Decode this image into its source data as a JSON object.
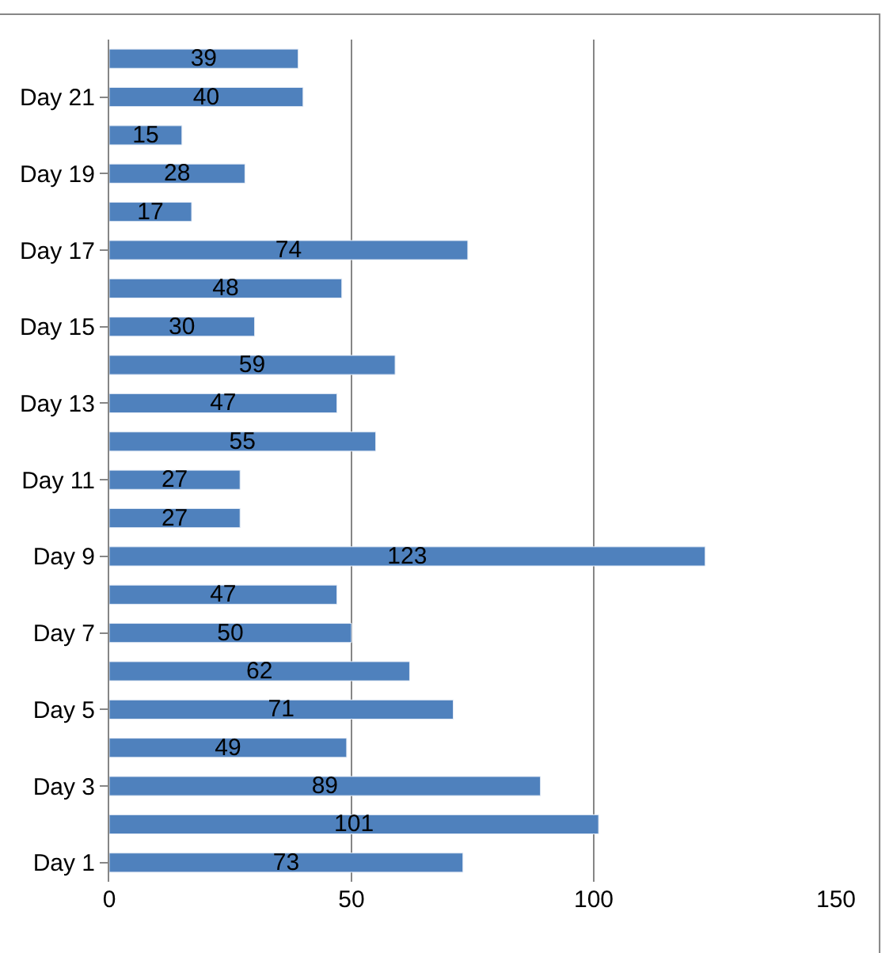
{
  "chart_data": {
    "type": "bar",
    "orientation": "horizontal",
    "categories": [
      null,
      "Day 21",
      null,
      "Day 19",
      null,
      "Day 17",
      null,
      "Day 15",
      null,
      "Day 13",
      null,
      "Day 11",
      null,
      "Day 9",
      null,
      "Day 7",
      null,
      "Day 5",
      null,
      "Day 3",
      null,
      "Day 1"
    ],
    "values": [
      39,
      40,
      15,
      28,
      17,
      74,
      48,
      30,
      59,
      47,
      55,
      27,
      27,
      123,
      47,
      50,
      62,
      71,
      49,
      89,
      101,
      73
    ],
    "color": "#4f81bd",
    "xlim": [
      0,
      150
    ],
    "xticks": [
      0,
      50,
      100,
      150
    ],
    "grid": "x",
    "legend": false,
    "data_labels": true
  }
}
